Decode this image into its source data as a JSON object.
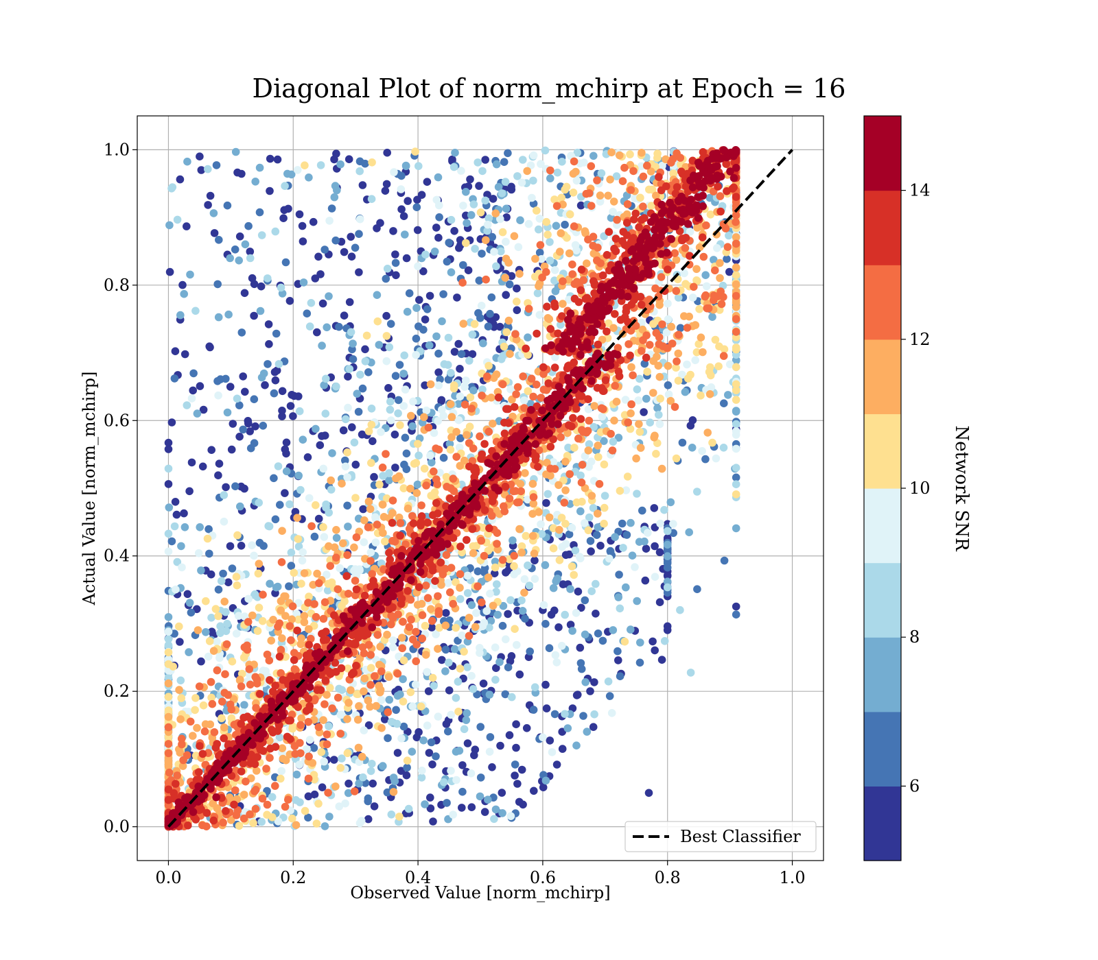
{
  "chart_data": {
    "type": "scatter",
    "title": "Diagonal Plot of norm_mchirp at Epoch = 16",
    "xlabel": "Observed Value [norm_mchirp]",
    "ylabel": "Actual Value [norm_mchirp]",
    "xlim": [
      -0.05,
      1.05
    ],
    "ylim": [
      -0.05,
      1.05
    ],
    "xticks": [
      "0.0",
      "0.2",
      "0.4",
      "0.6",
      "0.8",
      "1.0"
    ],
    "yticks": [
      "0.0",
      "0.2",
      "0.4",
      "0.6",
      "0.8",
      "1.0"
    ],
    "grid": true,
    "legend": {
      "position": "lower-right",
      "entries": [
        {
          "label": "Best Classifier",
          "style": "dashed",
          "color": "#000000"
        }
      ]
    },
    "reference_line": {
      "name": "Best Classifier",
      "x": [
        0,
        1
      ],
      "y": [
        0,
        1
      ]
    },
    "colorbar": {
      "label": "Network SNR",
      "min": 5,
      "max": 15,
      "ticks": [
        6,
        8,
        10,
        12,
        14
      ],
      "colors": [
        "#313695",
        "#4575b4",
        "#74add1",
        "#abd9e9",
        "#e0f3f8",
        "#fee090",
        "#fdae61",
        "#f46d43",
        "#d73027",
        "#a50026"
      ]
    },
    "scatter_cloud": {
      "description_points": [
        {
          "x": 0.05,
          "y": 0.99,
          "snr_bin": 0
        },
        {
          "x": 0.8,
          "y": 0.41,
          "snr_bin": 0
        },
        {
          "x": 0.82,
          "y": 0.32,
          "snr_bin": 3
        },
        {
          "x": 0.77,
          "y": 0.05,
          "snr_bin": 0
        },
        {
          "x": 0.91,
          "y": 0.75,
          "snr_bin": 7
        },
        {
          "x": 0.89,
          "y": 0.56,
          "snr_bin": 3
        }
      ]
    }
  }
}
